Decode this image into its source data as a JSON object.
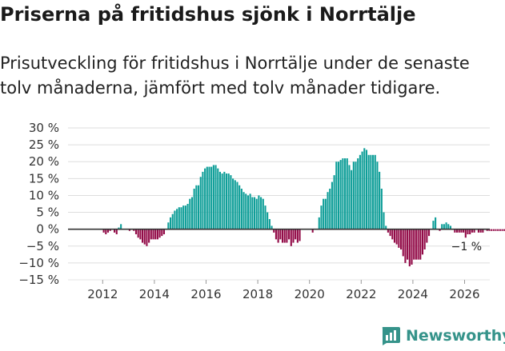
{
  "header": {
    "title": "Priserna på fritidshus sjönk i Norrtälje",
    "subtitle": "Prisutveckling för fritidshus i Norrtälje under de senaste tolv månaderna, jämfört med tolv månader tidigare."
  },
  "brand": {
    "name": "Newsworthy"
  },
  "colors": {
    "positive": "#0e9e98",
    "negative": "#920a47",
    "grid": "#dddddd",
    "zero_line": "#333333",
    "brand": "#35938a"
  },
  "chart_data": {
    "type": "bar",
    "title": "Priserna på fritidshus sjönk i Norrtälje",
    "xlabel": "",
    "ylabel": "",
    "ylim": [
      -15,
      30
    ],
    "yticks": [
      30,
      25,
      20,
      15,
      10,
      5,
      0,
      -5,
      -10,
      -15
    ],
    "ytick_labels": [
      "30 %",
      "25 %",
      "20 %",
      "15 %",
      "10 %",
      "5 %",
      "0 %",
      "−5 %",
      "−10 %",
      "−15 %"
    ],
    "xticks": [
      "2012",
      "2014",
      "2016",
      "2018",
      "2020",
      "2022",
      "2024",
      "2026"
    ],
    "start_year": 2011,
    "start_month": 1,
    "unit": "%",
    "end_label": "−1 %",
    "values": [
      0,
      0,
      0,
      0,
      0,
      0,
      0,
      0,
      0,
      0,
      0,
      0,
      -1,
      -1.5,
      -1,
      -0.5,
      0,
      -1,
      -1.5,
      0.5,
      1.5,
      0,
      0,
      0,
      -0.5,
      0,
      -0.5,
      -1.5,
      -2.5,
      -3,
      -4,
      -4.5,
      -5,
      -4,
      -3,
      -3,
      -3,
      -3,
      -2.5,
      -2,
      -1.5,
      0,
      2,
      3.5,
      4.5,
      5.5,
      6,
      6.5,
      6.5,
      7,
      7,
      7.5,
      9,
      9.5,
      12,
      13,
      13,
      15.5,
      17,
      18,
      18.5,
      18.5,
      18.5,
      19,
      19,
      18,
      17,
      16.5,
      17,
      16.5,
      16.5,
      16,
      15,
      14.5,
      14,
      13,
      12,
      11,
      10.5,
      10,
      10.5,
      9.5,
      9.5,
      9,
      10,
      9.5,
      9,
      7,
      5,
      3,
      1,
      -1,
      -3,
      -4,
      -3,
      -4,
      -4,
      -4,
      -3,
      -5,
      -4,
      -3,
      -4,
      -3.5,
      0,
      0,
      0,
      0,
      0,
      -1,
      0,
      0,
      3.5,
      7,
      9,
      9,
      11,
      12,
      14,
      16,
      20,
      20,
      20.5,
      21,
      21,
      21,
      19,
      17.5,
      20,
      20,
      21,
      22,
      23,
      24,
      23.5,
      22,
      22,
      22,
      22,
      20,
      17,
      12,
      5,
      1,
      -1,
      -2,
      -3,
      -4,
      -4.5,
      -5.5,
      -6,
      -8,
      -10,
      -9,
      -11,
      -10.5,
      -9,
      -9,
      -9,
      -9,
      -7.5,
      -6,
      -4,
      -2,
      0,
      2.5,
      3.5,
      0,
      -0.5,
      1.5,
      1.5,
      2,
      1.5,
      1,
      0,
      -1,
      -1,
      -1,
      -1,
      -1,
      -2.5,
      -1.5,
      -1.5,
      -1,
      -1,
      0,
      -1,
      -1,
      -1,
      0,
      -0.5,
      -0.5,
      -0.5,
      -0.5,
      -0.5,
      -0.5,
      -0.5,
      -0.5,
      -0.5,
      -0.5,
      -0.5,
      -1
    ]
  }
}
